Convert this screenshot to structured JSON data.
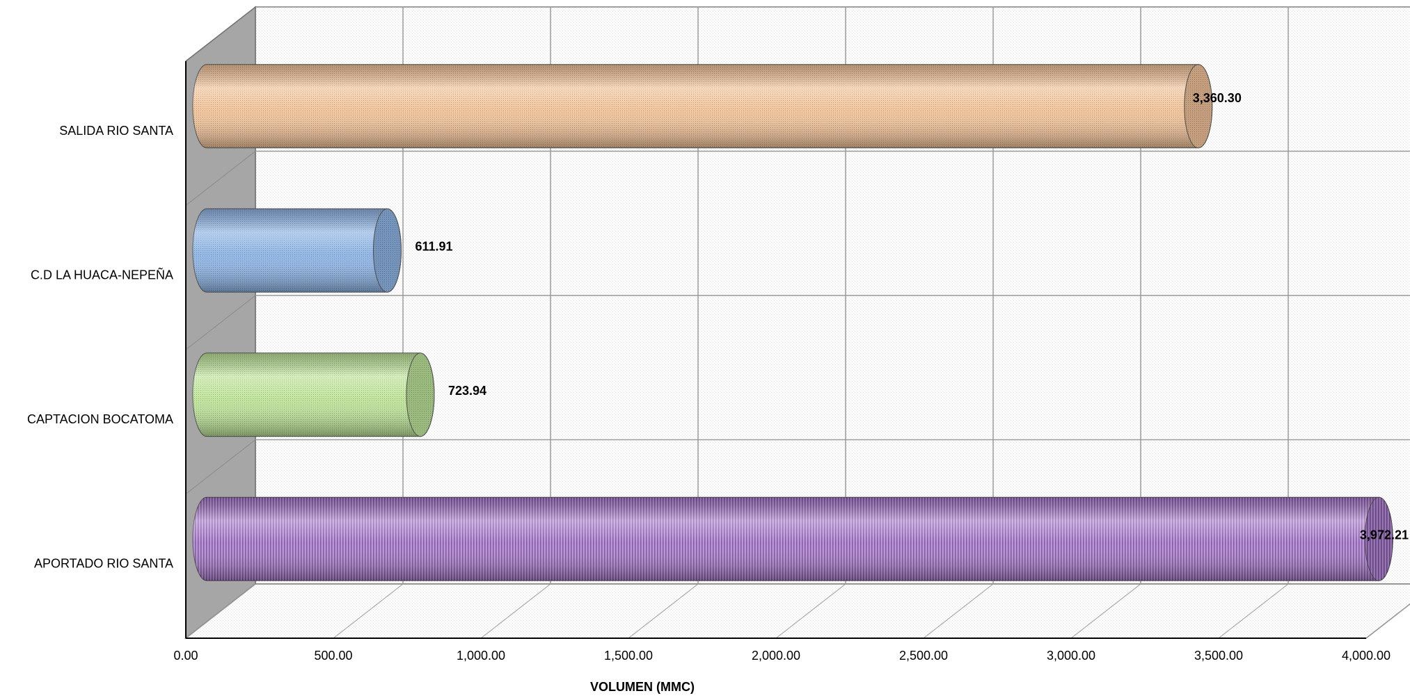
{
  "chart_data": {
    "type": "bar",
    "orientation": "horizontal",
    "style": "3d-cylinder",
    "categories": [
      "APORTADO RIO SANTA",
      "CAPTACION BOCATOMA",
      "C.D LA HUACA-NEPEÑA",
      "SALIDA RIO SANTA"
    ],
    "values": [
      3972.21,
      723.94,
      611.91,
      3360.3
    ],
    "value_labels": [
      "3,972.21",
      "723.94",
      "611.91",
      "3,360.30"
    ],
    "colors": [
      "#b98fdc",
      "#bfe59a",
      "#8fb6e6",
      "#f2c49a"
    ],
    "xlabel": "VOLUMEN  (MMC)",
    "ylabel": "",
    "title": "",
    "xlim": [
      0,
      4000
    ],
    "xticks": [
      0,
      500,
      1000,
      1500,
      2000,
      2500,
      3000,
      3500,
      4000
    ],
    "xtick_labels": [
      "0.00",
      "500.00",
      "1,000.00",
      "1,500.00",
      "2,000.00",
      "2,500.00",
      "3,000.00",
      "3,500.00",
      "4,000.00"
    ],
    "grid": true,
    "legend": "none"
  }
}
